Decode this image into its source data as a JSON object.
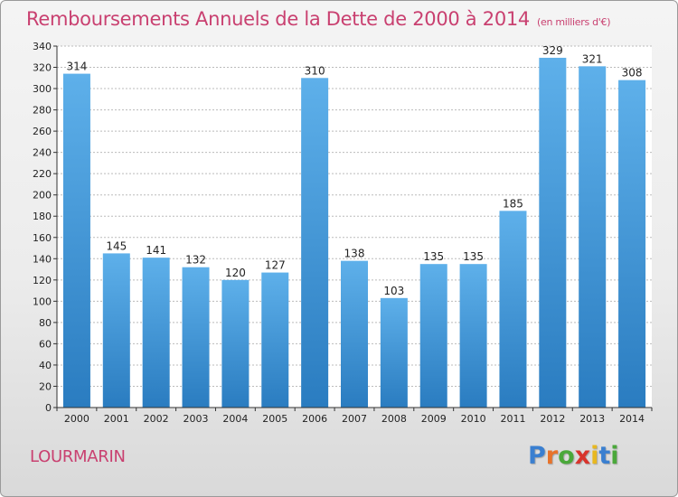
{
  "title": "Remboursements Annuels de la Dette de 2000 à 2014",
  "subtitle": "(en milliers d'€)",
  "commune": "LOURMARIN",
  "logo": {
    "text": "Proxiti",
    "letters": [
      {
        "ch": "P",
        "color": "#3a7fd0"
      },
      {
        "ch": "r",
        "color": "#e8732a"
      },
      {
        "ch": "o",
        "color": "#4aa83a"
      },
      {
        "ch": "x",
        "color": "#d8342c"
      },
      {
        "ch": "i",
        "color": "#e8b820"
      },
      {
        "ch": "t",
        "color": "#3a7fd0"
      },
      {
        "ch": "i",
        "color": "#4aa83a"
      }
    ]
  },
  "colors": {
    "bar_top": "#5eb0ea",
    "bar_bottom": "#2a7cc0",
    "accent": "#c94070",
    "grid": "#bbbbbb"
  },
  "chart_data": {
    "type": "bar",
    "title": "Remboursements Annuels de la Dette de 2000 à 2014",
    "subtitle": "(en milliers d'€)",
    "xlabel": "",
    "ylabel": "",
    "ylim": [
      0,
      340
    ],
    "ytick_step": 20,
    "grid": true,
    "categories": [
      "2000",
      "2001",
      "2002",
      "2003",
      "2004",
      "2005",
      "2006",
      "2007",
      "2008",
      "2009",
      "2010",
      "2011",
      "2012",
      "2013",
      "2014"
    ],
    "values": [
      314,
      145,
      141,
      132,
      120,
      127,
      310,
      138,
      103,
      135,
      135,
      185,
      329,
      321,
      308
    ]
  }
}
